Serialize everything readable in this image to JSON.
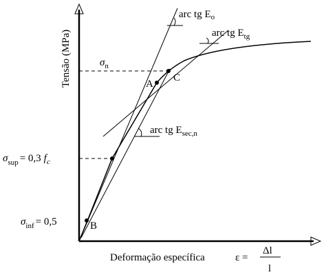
{
  "axes": {
    "y_label": "Tensão (MPa)",
    "x_label": "Deformação específica",
    "strain_formula": {
      "symbol": "ε =",
      "numerator": "Δl",
      "denominator": "l"
    }
  },
  "angles": [
    {
      "text": "arc tg E",
      "sub": "o"
    },
    {
      "text": "arc tg E",
      "sub": "tg"
    },
    {
      "text": "arc tg E",
      "sub": "sec,n"
    }
  ],
  "stress_levels": [
    {
      "symbol": "σ",
      "sub": "n"
    },
    {
      "symbol": "σ",
      "sub": "sup",
      "rest": "= 0,3",
      "f": "f",
      "fsub": "c"
    },
    {
      "symbol": "σ",
      "sub": "inf",
      "rest": "= 0,5"
    }
  ],
  "points": [
    "A",
    "B",
    "C"
  ]
}
